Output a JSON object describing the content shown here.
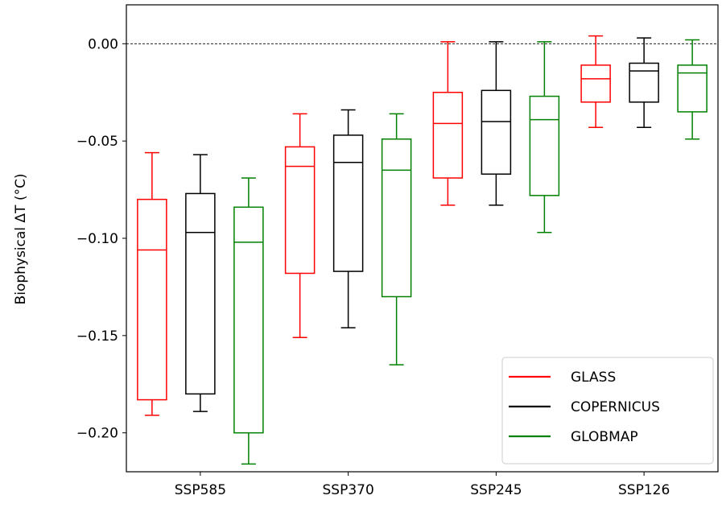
{
  "chart_data": {
    "type": "boxplot",
    "title": "",
    "xlabel": "",
    "ylabel": "Biophysical  ΔT (°C)",
    "categories": [
      "SSP585",
      "SSP370",
      "SSP245",
      "SSP126"
    ],
    "ylim": [
      -0.22,
      0.02
    ],
    "yticks": [
      0.0,
      -0.05,
      -0.1,
      -0.15,
      -0.2
    ],
    "ytick_labels": [
      "0.00",
      "−0.05",
      "−0.10",
      "−0.15",
      "−0.20"
    ],
    "reference_line": {
      "y": 0.0,
      "style": "dashed",
      "color": "#000000"
    },
    "legend_position": "bottom-right",
    "grid": false,
    "series": [
      {
        "name": "GLASS",
        "color": "#ff0000",
        "boxes": [
          {
            "whisker_low": -0.191,
            "q1": -0.183,
            "median": -0.106,
            "q3": -0.08,
            "whisker_high": -0.056
          },
          {
            "whisker_low": -0.151,
            "q1": -0.118,
            "median": -0.063,
            "q3": -0.053,
            "whisker_high": -0.036
          },
          {
            "whisker_low": -0.083,
            "q1": -0.069,
            "median": -0.041,
            "q3": -0.025,
            "whisker_high": 0.001
          },
          {
            "whisker_low": -0.043,
            "q1": -0.03,
            "median": -0.018,
            "q3": -0.011,
            "whisker_high": 0.004
          }
        ]
      },
      {
        "name": "COPERNICUS",
        "color": "#000000",
        "boxes": [
          {
            "whisker_low": -0.189,
            "q1": -0.18,
            "median": -0.097,
            "q3": -0.077,
            "whisker_high": -0.057
          },
          {
            "whisker_low": -0.146,
            "q1": -0.117,
            "median": -0.061,
            "q3": -0.047,
            "whisker_high": -0.034
          },
          {
            "whisker_low": -0.083,
            "q1": -0.067,
            "median": -0.04,
            "q3": -0.024,
            "whisker_high": 0.001
          },
          {
            "whisker_low": -0.043,
            "q1": -0.03,
            "median": -0.014,
            "q3": -0.01,
            "whisker_high": 0.003
          }
        ]
      },
      {
        "name": "GLOBMAP",
        "color": "#008000",
        "boxes": [
          {
            "whisker_low": -0.216,
            "q1": -0.2,
            "median": -0.102,
            "q3": -0.084,
            "whisker_high": -0.069
          },
          {
            "whisker_low": -0.165,
            "q1": -0.13,
            "median": -0.065,
            "q3": -0.049,
            "whisker_high": -0.036
          },
          {
            "whisker_low": -0.097,
            "q1": -0.078,
            "median": -0.039,
            "q3": -0.027,
            "whisker_high": 0.001
          },
          {
            "whisker_low": -0.049,
            "q1": -0.035,
            "median": -0.015,
            "q3": -0.011,
            "whisker_high": 0.002
          }
        ]
      }
    ]
  }
}
